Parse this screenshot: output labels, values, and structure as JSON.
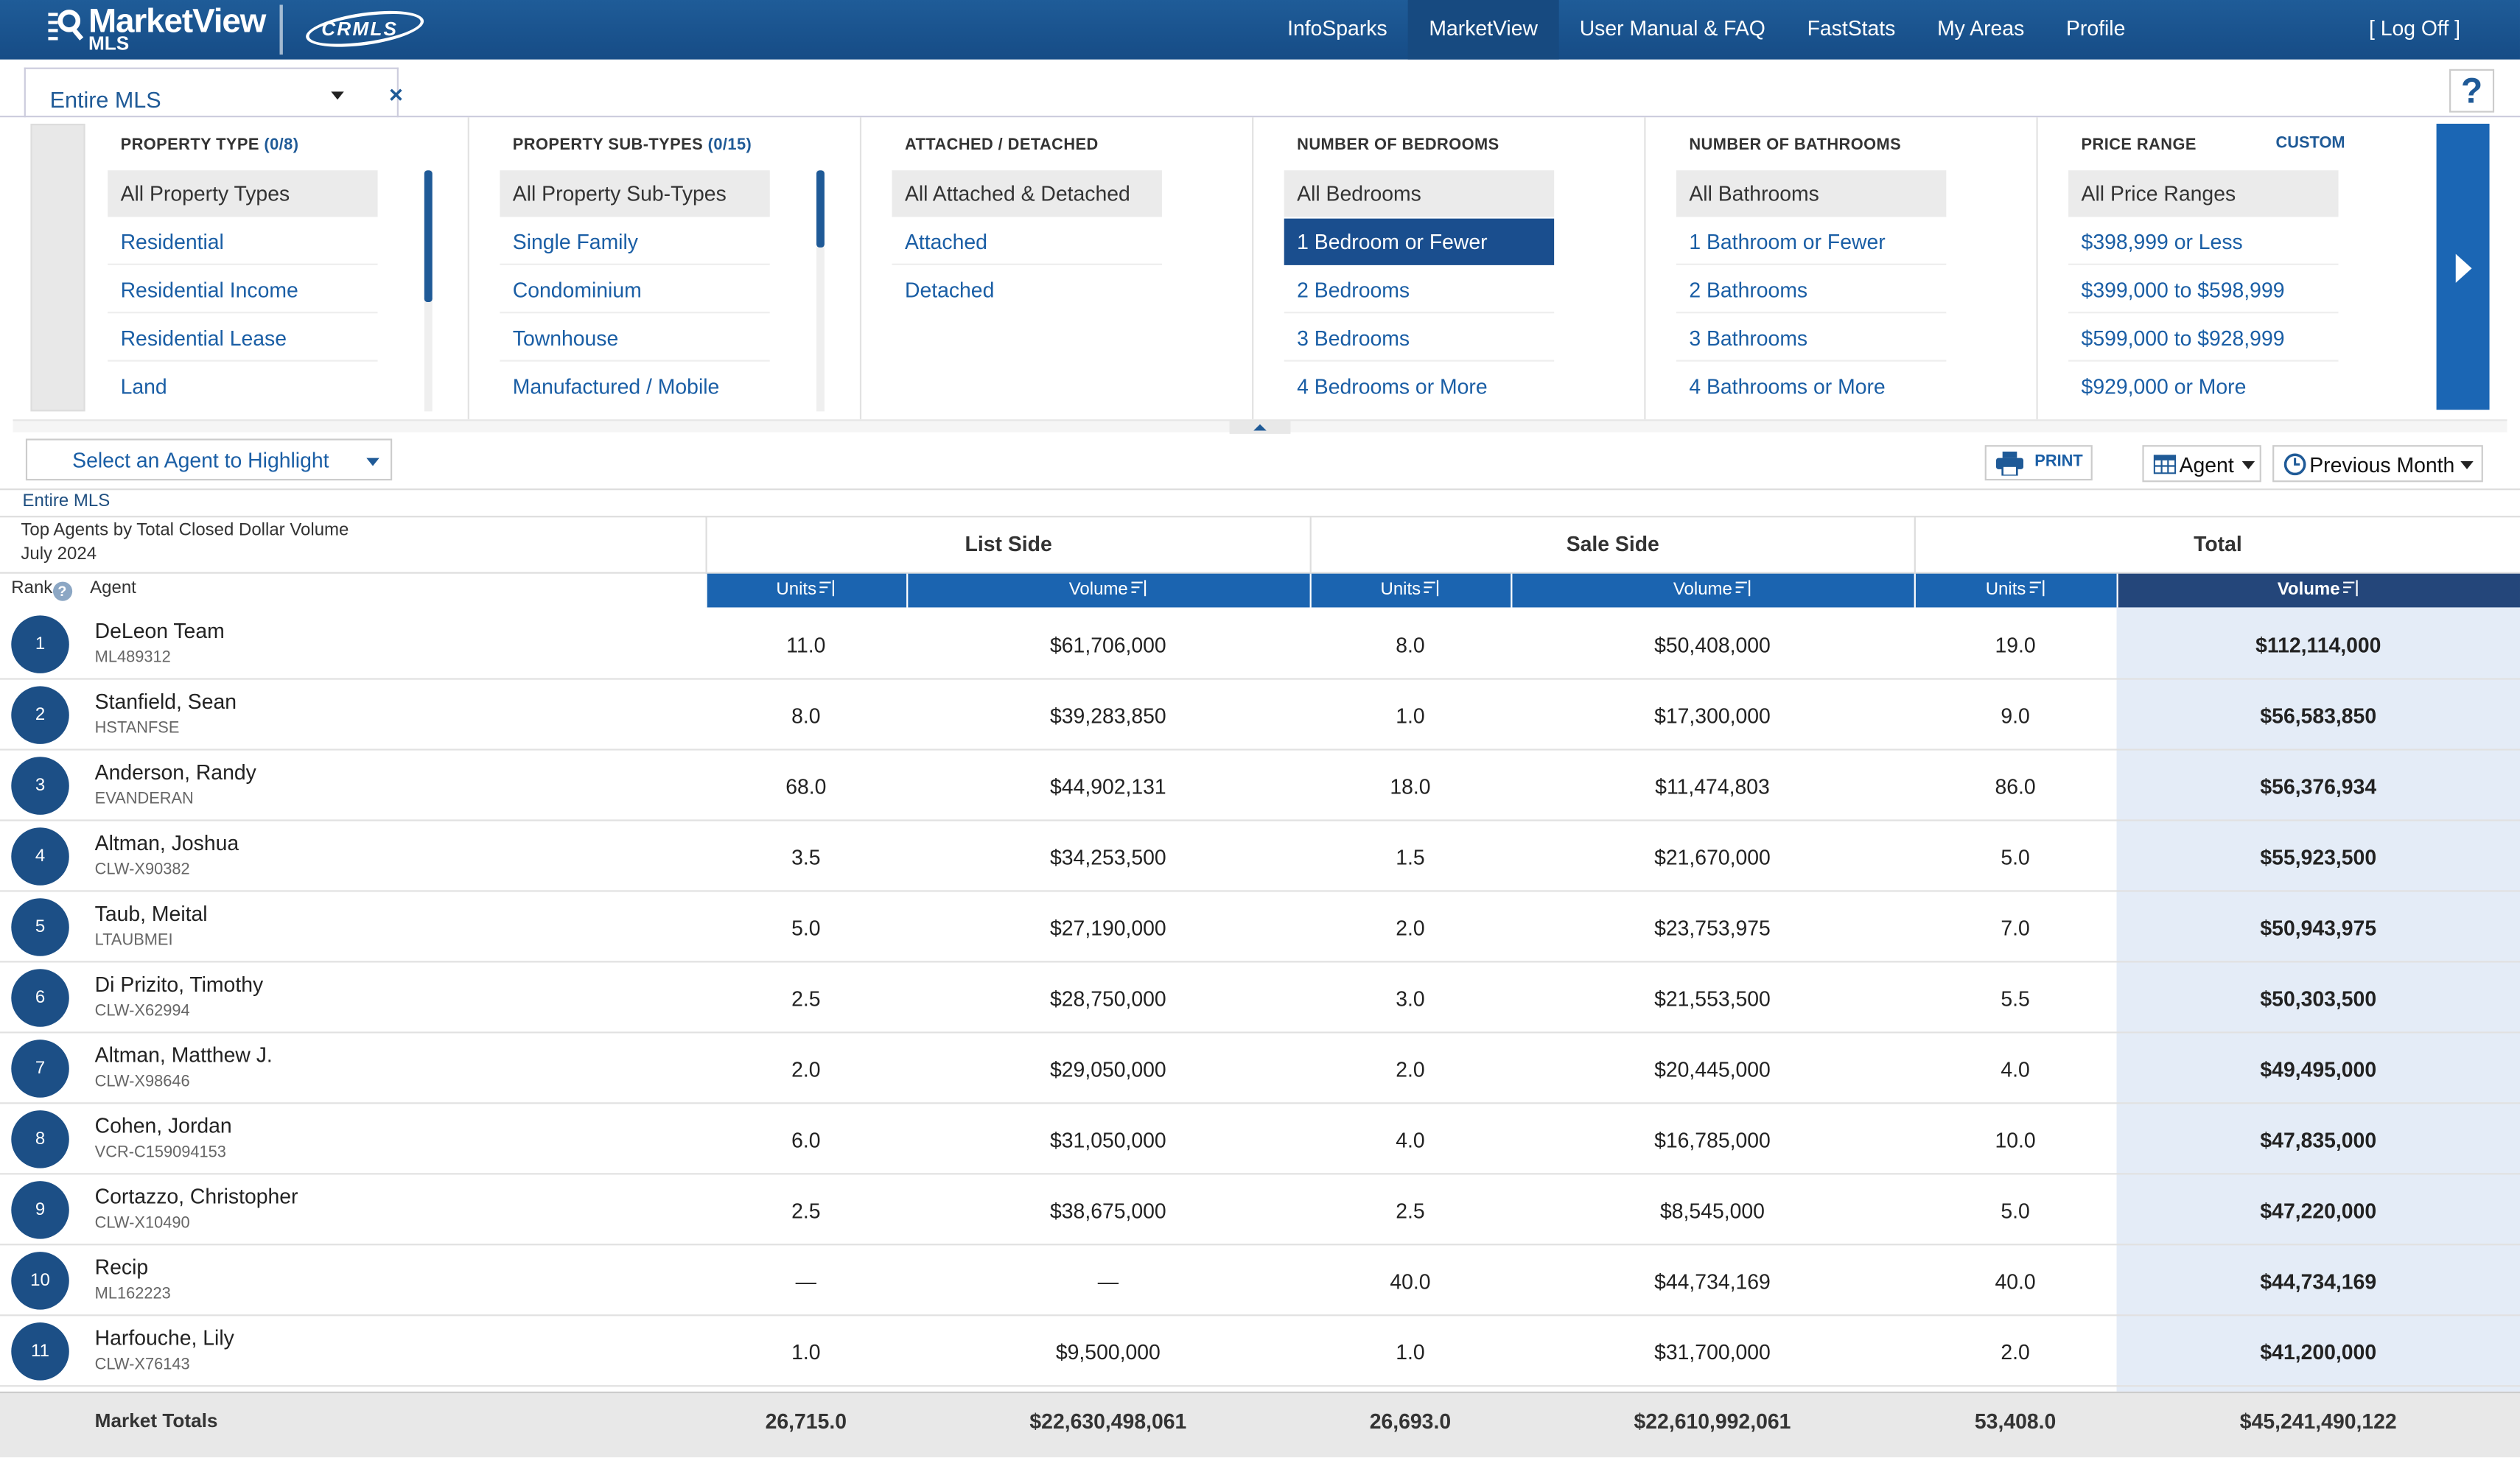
{
  "brand": {
    "name": "MarketView",
    "sub": "MLS",
    "partner": "CRMLS"
  },
  "nav": {
    "items": [
      {
        "label": "InfoSparks",
        "active": false
      },
      {
        "label": "MarketView",
        "active": true
      },
      {
        "label": "User Manual & FAQ",
        "active": false
      },
      {
        "label": "FastStats",
        "active": false
      },
      {
        "label": "My Areas",
        "active": false
      },
      {
        "label": "Profile",
        "active": false
      }
    ],
    "logoff": "[ Log Off ]"
  },
  "area_tab": {
    "label": "Entire MLS",
    "close": "×"
  },
  "help": "?",
  "filters": {
    "property_type": {
      "title": "PROPERTY TYPE",
      "count": "(0/8)",
      "options": [
        "All Property Types",
        "Residential",
        "Residential Income",
        "Residential Lease",
        "Land"
      ]
    },
    "sub_types": {
      "title": "PROPERTY SUB-TYPES",
      "count": "(0/15)",
      "options": [
        "All Property Sub-Types",
        "Single Family",
        "Condominium",
        "Townhouse",
        "Manufactured / Mobile"
      ]
    },
    "attached": {
      "title": "ATTACHED / DETACHED",
      "options": [
        "All Attached & Detached",
        "Attached",
        "Detached"
      ]
    },
    "bedrooms": {
      "title": "NUMBER OF BEDROOMS",
      "selected": "1 Bedroom or Fewer",
      "options": [
        "All Bedrooms",
        "1 Bedroom or Fewer",
        "2 Bedrooms",
        "3 Bedrooms",
        "4 Bedrooms or More"
      ]
    },
    "bathrooms": {
      "title": "NUMBER OF BATHROOMS",
      "options": [
        "All Bathrooms",
        "1 Bathroom or Fewer",
        "2 Bathrooms",
        "3 Bathrooms",
        "4 Bathrooms or More"
      ]
    },
    "price": {
      "title": "PRICE RANGE",
      "custom": "CUSTOM",
      "options": [
        "All Price Ranges",
        "$398,999 or Less",
        "$399,000 to $598,999",
        "$599,000 to $928,999",
        "$929,000 or More"
      ]
    }
  },
  "controls": {
    "agent_select": "Select an Agent to Highlight",
    "print": "PRINT",
    "view": "Agent",
    "period": "Previous Month"
  },
  "report": {
    "scope": "Entire MLS",
    "title": "Top Agents by Total Closed Dollar Volume",
    "period": "July 2024",
    "groups": [
      "List Side",
      "Sale Side",
      "Total"
    ],
    "rank_label": "Rank",
    "agent_label": "Agent",
    "units_label": "Units",
    "volume_label": "Volume"
  },
  "rows": [
    {
      "rank": "1",
      "name": "DeLeon Team",
      "id": "ML489312",
      "list_units": "11.0",
      "list_volume": "$61,706,000",
      "sale_units": "8.0",
      "sale_volume": "$50,408,000",
      "total_units": "19.0",
      "total_volume": "$112,114,000"
    },
    {
      "rank": "2",
      "name": "Stanfield, Sean",
      "id": "HSTANFSE",
      "list_units": "8.0",
      "list_volume": "$39,283,850",
      "sale_units": "1.0",
      "sale_volume": "$17,300,000",
      "total_units": "9.0",
      "total_volume": "$56,583,850"
    },
    {
      "rank": "3",
      "name": "Anderson, Randy",
      "id": "EVANDERAN",
      "list_units": "68.0",
      "list_volume": "$44,902,131",
      "sale_units": "18.0",
      "sale_volume": "$11,474,803",
      "total_units": "86.0",
      "total_volume": "$56,376,934"
    },
    {
      "rank": "4",
      "name": "Altman, Joshua",
      "id": "CLW-X90382",
      "list_units": "3.5",
      "list_volume": "$34,253,500",
      "sale_units": "1.5",
      "sale_volume": "$21,670,000",
      "total_units": "5.0",
      "total_volume": "$55,923,500"
    },
    {
      "rank": "5",
      "name": "Taub, Meital",
      "id": "LTAUBMEI",
      "list_units": "5.0",
      "list_volume": "$27,190,000",
      "sale_units": "2.0",
      "sale_volume": "$23,753,975",
      "total_units": "7.0",
      "total_volume": "$50,943,975"
    },
    {
      "rank": "6",
      "name": "Di Prizito, Timothy",
      "id": "CLW-X62994",
      "list_units": "2.5",
      "list_volume": "$28,750,000",
      "sale_units": "3.0",
      "sale_volume": "$21,553,500",
      "total_units": "5.5",
      "total_volume": "$50,303,500"
    },
    {
      "rank": "7",
      "name": "Altman, Matthew J.",
      "id": "CLW-X98646",
      "list_units": "2.0",
      "list_volume": "$29,050,000",
      "sale_units": "2.0",
      "sale_volume": "$20,445,000",
      "total_units": "4.0",
      "total_volume": "$49,495,000"
    },
    {
      "rank": "8",
      "name": "Cohen, Jordan",
      "id": "VCR-C159094153",
      "list_units": "6.0",
      "list_volume": "$31,050,000",
      "sale_units": "4.0",
      "sale_volume": "$16,785,000",
      "total_units": "10.0",
      "total_volume": "$47,835,000"
    },
    {
      "rank": "9",
      "name": "Cortazzo, Christopher",
      "id": "CLW-X10490",
      "list_units": "2.5",
      "list_volume": "$38,675,000",
      "sale_units": "2.5",
      "sale_volume": "$8,545,000",
      "total_units": "5.0",
      "total_volume": "$47,220,000"
    },
    {
      "rank": "10",
      "name": "Recip",
      "id": "ML162223",
      "list_units": "—",
      "list_volume": "—",
      "sale_units": "40.0",
      "sale_volume": "$44,734,169",
      "total_units": "40.0",
      "total_volume": "$44,734,169"
    },
    {
      "rank": "11",
      "name": "Harfouche, Lily",
      "id": "CLW-X76143",
      "list_units": "1.0",
      "list_volume": "$9,500,000",
      "sale_units": "1.0",
      "sale_volume": "$31,700,000",
      "total_units": "2.0",
      "total_volume": "$41,200,000"
    }
  ],
  "totals": {
    "label": "Market Totals",
    "list_units": "26,715.0",
    "list_volume": "$22,630,498,061",
    "sale_units": "26,693.0",
    "sale_volume": "$22,610,992,061",
    "total_units": "53,408.0",
    "total_volume": "$45,241,490,122"
  },
  "colors": {
    "nav_bg": "#1a5590",
    "accent": "#1b64b0",
    "active_header": "#24467a",
    "rank_badge": "#1c4f86",
    "selected_option": "#1a4e8e"
  }
}
